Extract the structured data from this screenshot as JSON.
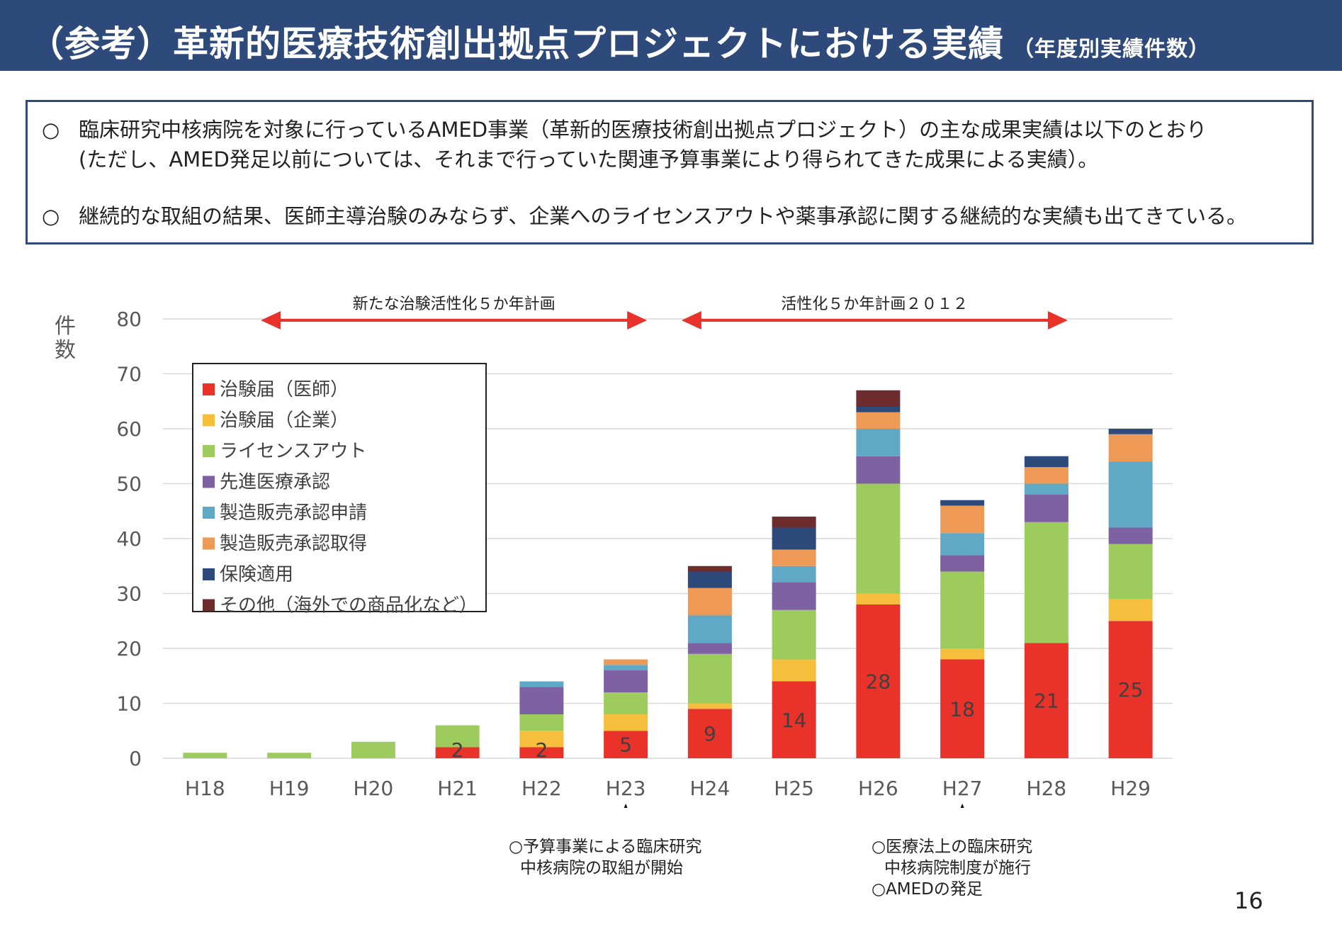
{
  "header": {
    "title": "（参考）革新的医療技術創出拠点プロジェクトにおける実績",
    "subtitle": "（年度別実績件数）"
  },
  "notes": {
    "bullet": "○",
    "item1_line1": "臨床研究中核病院を対象に行っているAMED事業（革新的医療技術創出拠点プロジェクト）の主な成果実績は以下のとおり",
    "item1_line2": "(ただし、AMED発足以前については、それまで行っていた関連予算事業により得られてきた成果による実績）。",
    "item2": "継続的な取組の結果、医師主導治験のみならず、企業へのライセンスアウトや薬事承認に関する継続的な実績も出てきている。"
  },
  "chart_data": {
    "type": "bar",
    "stacked": true,
    "ylabel": "件数",
    "ylim": [
      0,
      80
    ],
    "yticks": [
      0,
      10,
      20,
      30,
      40,
      50,
      60,
      70,
      80
    ],
    "grid": true,
    "legend_position": "top-left",
    "categories": [
      "H18",
      "H19",
      "H20",
      "H21",
      "H22",
      "H23",
      "H24",
      "H25",
      "H26",
      "H27",
      "H28",
      "H29"
    ],
    "series": [
      {
        "name": "治験届（医師）",
        "color": "#e8322a",
        "values": [
          0,
          0,
          0,
          2,
          2,
          5,
          9,
          14,
          28,
          18,
          21,
          25
        ]
      },
      {
        "name": "治験届（企業）",
        "color": "#f5be3c",
        "values": [
          0,
          0,
          0,
          0,
          3,
          3,
          1,
          4,
          2,
          2,
          0,
          4
        ]
      },
      {
        "name": "ライセンスアウト",
        "color": "#9ecb5e",
        "values": [
          1,
          1,
          3,
          4,
          3,
          4,
          9,
          9,
          20,
          14,
          22,
          10
        ]
      },
      {
        "name": "先進医療承認",
        "color": "#7d61a3",
        "values": [
          0,
          0,
          0,
          0,
          5,
          4,
          2,
          5,
          5,
          3,
          5,
          3
        ]
      },
      {
        "name": "製造販売承認申請",
        "color": "#5fa9c6",
        "values": [
          0,
          0,
          0,
          0,
          1,
          1,
          5,
          3,
          5,
          4,
          2,
          12
        ]
      },
      {
        "name": "製造販売承認取得",
        "color": "#ee9a56",
        "values": [
          0,
          0,
          0,
          0,
          0,
          1,
          5,
          3,
          3,
          5,
          3,
          5
        ]
      },
      {
        "name": "保険適用",
        "color": "#2e4a7a",
        "values": [
          0,
          0,
          0,
          0,
          0,
          0,
          3,
          4,
          1,
          1,
          2,
          1
        ]
      },
      {
        "name": "その他（海外での商品化など）",
        "color": "#6e2c2c",
        "values": [
          0,
          0,
          0,
          0,
          0,
          0,
          1,
          2,
          3,
          0,
          0,
          0
        ]
      }
    ],
    "data_labels": [
      null,
      null,
      null,
      2,
      2,
      5,
      9,
      14,
      28,
      18,
      21,
      25
    ],
    "annotations": [
      {
        "text": "新たな治験活性化５か年計画",
        "from": "H19",
        "to": "H23"
      },
      {
        "text": "活性化５か年計画２０１２",
        "from": "H24",
        "to": "H28"
      }
    ]
  },
  "events": [
    {
      "category": "H23",
      "line1": "○予算事業による臨床研究",
      "line2": "中核病院の取組が開始"
    },
    {
      "category": "H27",
      "line1": "○医療法上の臨床研究",
      "line2": "中核病院制度が施行",
      "line3": "○AMEDの発足"
    }
  ],
  "page_number": "16"
}
